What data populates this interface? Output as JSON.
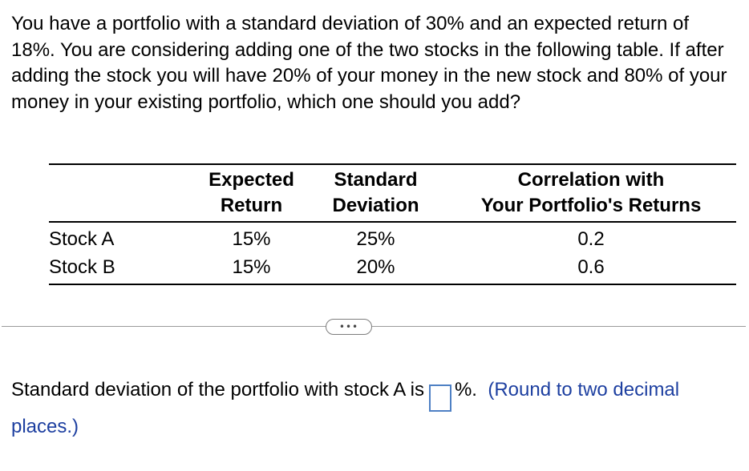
{
  "question": "You have a portfolio with a standard deviation of 30% and an expected return of 18%. You are considering adding one of the two stocks in the following table. If after adding the stock you will have 20% of your money in the new stock and 80% of your money in your existing portfolio, which one should you add?",
  "table": {
    "headers": {
      "name": "",
      "expected_return_line1": "Expected",
      "expected_return_line2": "Return",
      "std_dev_line1": "Standard",
      "std_dev_line2": "Deviation",
      "correlation_line1": "Correlation with",
      "correlation_line2": "Your Portfolio's Returns"
    },
    "rows": [
      {
        "name": "Stock A",
        "expected_return": "15%",
        "std_dev": "25%",
        "correlation": "0.2"
      },
      {
        "name": "Stock B",
        "expected_return": "15%",
        "std_dev": "20%",
        "correlation": "0.6"
      }
    ]
  },
  "more_button": {
    "label": "•••"
  },
  "answer": {
    "prompt": "Standard deviation of the portfolio with stock A is",
    "input_value": "",
    "unit": "%.",
    "hint": "(Round to two decimal places.)"
  },
  "colors": {
    "hint": "#1d3fa0",
    "input_border": "#4e80c4"
  }
}
